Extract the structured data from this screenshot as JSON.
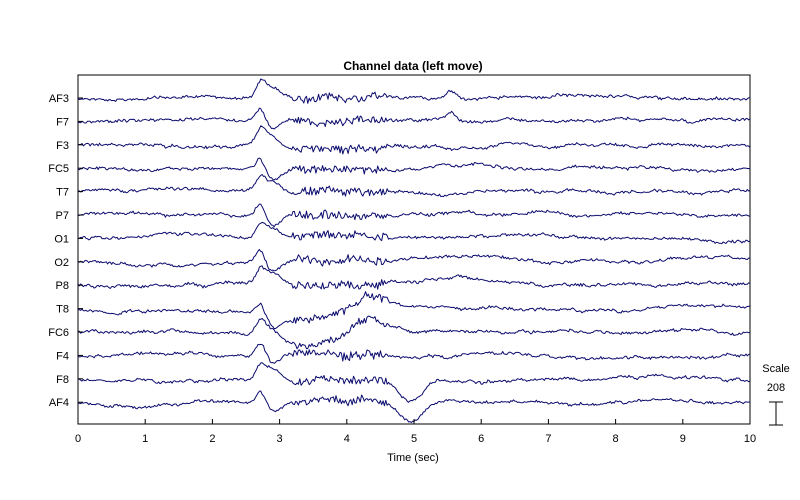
{
  "chart_data": {
    "type": "line",
    "title": "Channel data (left move)",
    "xlabel": "Time (sec)",
    "xlim": [
      0,
      10
    ],
    "x_ticks": [
      0,
      1,
      2,
      3,
      4,
      5,
      6,
      7,
      8,
      9,
      10
    ],
    "channels": [
      "AF3",
      "F7",
      "F3",
      "FC5",
      "T7",
      "P7",
      "O1",
      "O2",
      "P8",
      "T8",
      "FC6",
      "F4",
      "F8",
      "AF4"
    ],
    "scale": {
      "label": "Scale",
      "value": "208"
    },
    "grid": false,
    "trace_color": "#0b0b6e"
  }
}
